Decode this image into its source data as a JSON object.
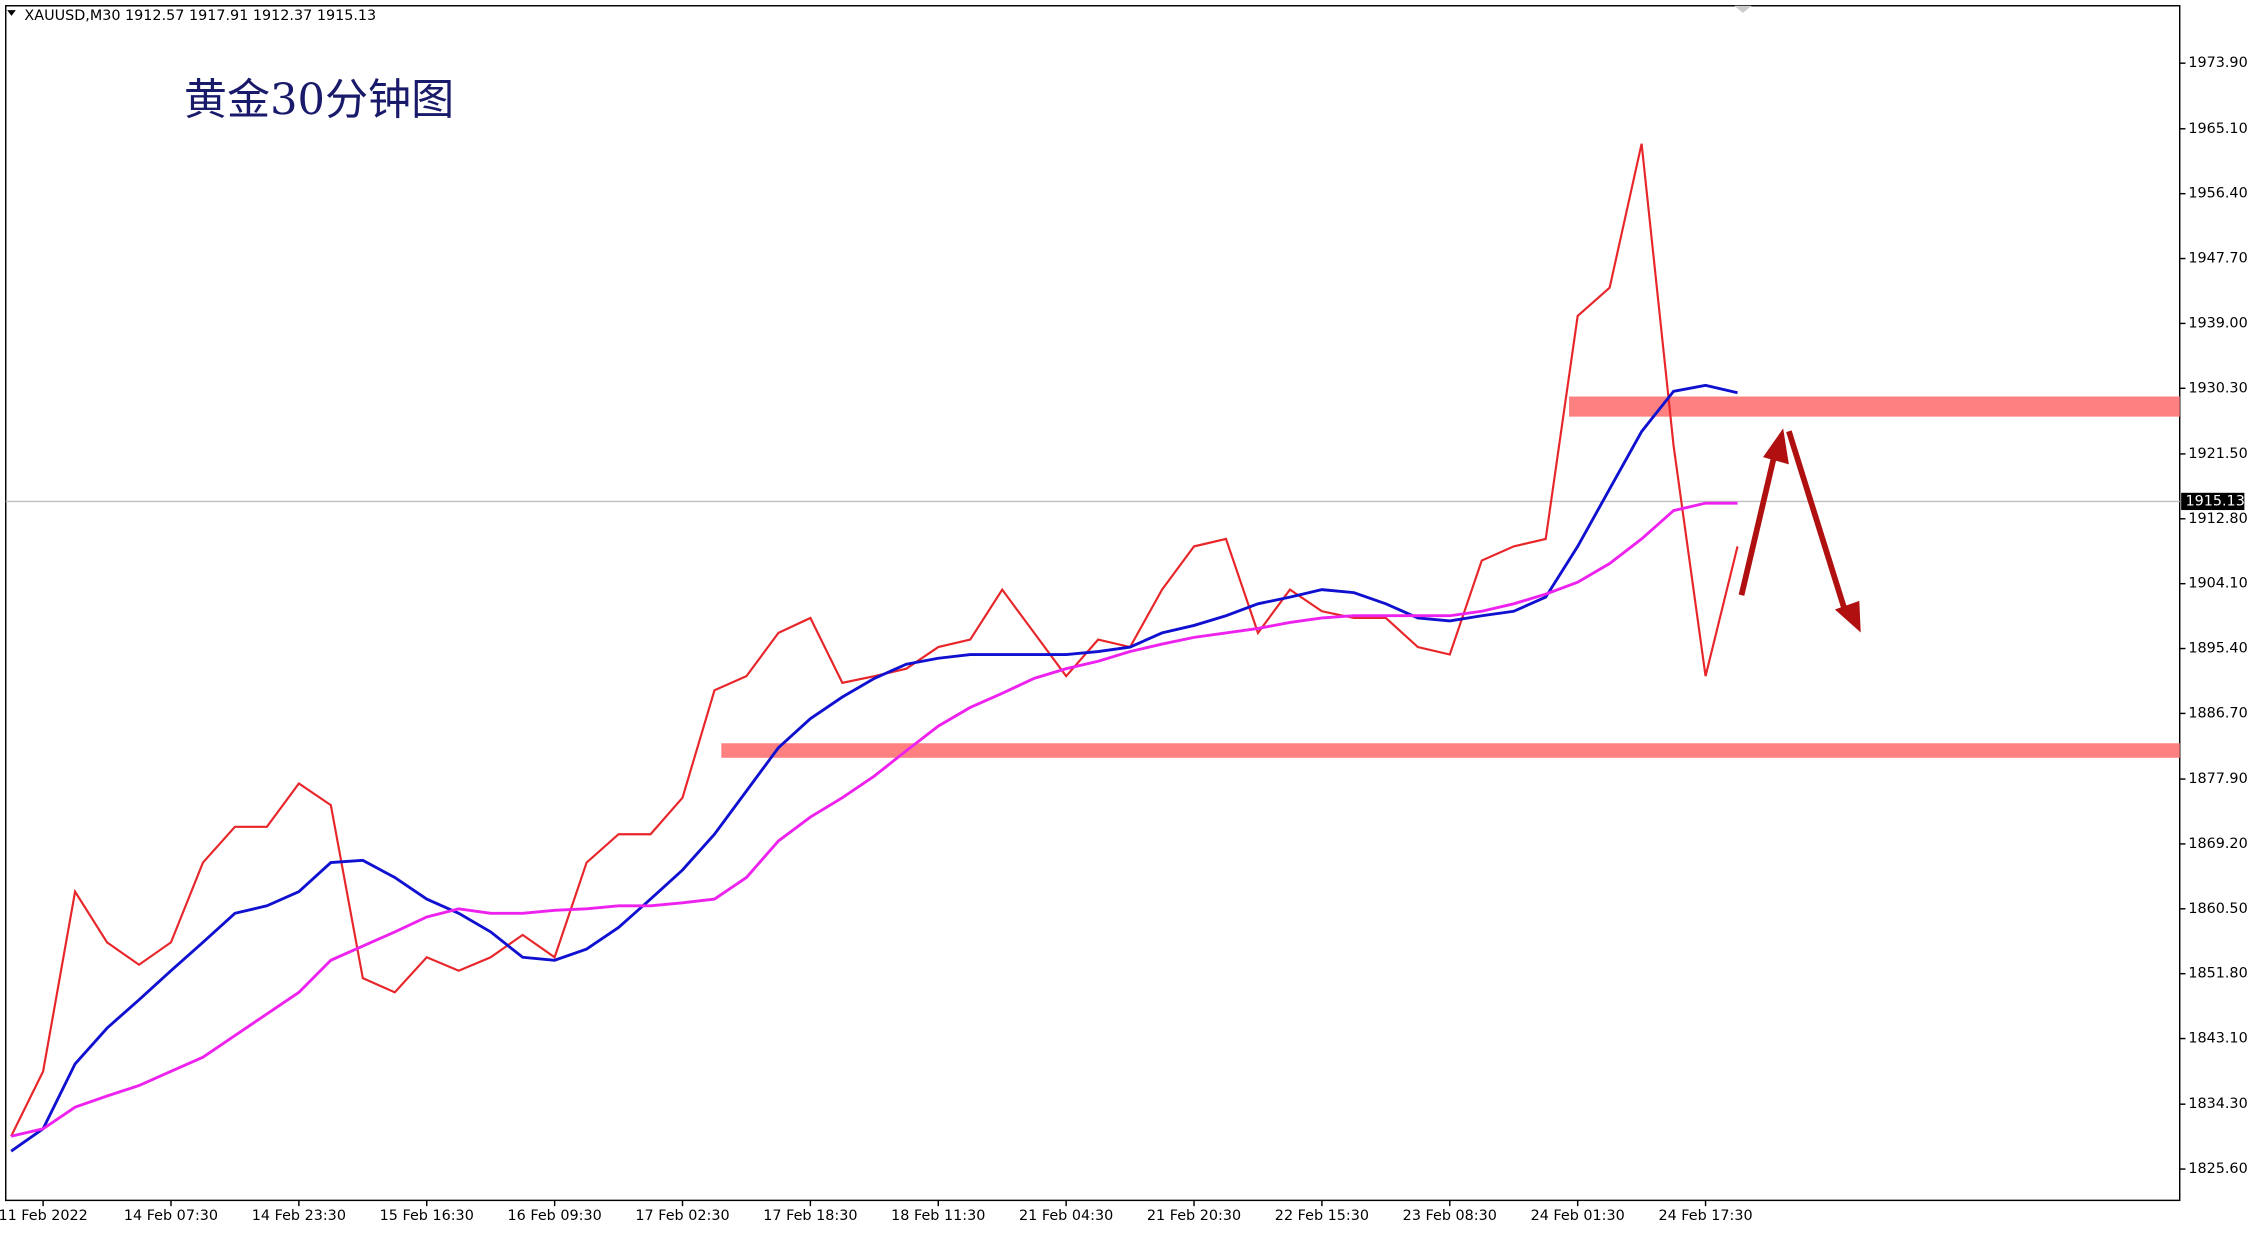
{
  "chart_data": {
    "type": "line",
    "header": "XAUUSD,M30  1912.57 1917.91 1912.37 1915.13",
    "title": "黄金30分钟图",
    "categories": [
      null,
      "11 Feb 2022",
      null,
      null,
      null,
      "14 Feb 07:30",
      null,
      null,
      null,
      "14 Feb 23:30",
      null,
      null,
      null,
      "15 Feb 16:30",
      null,
      null,
      null,
      "16 Feb 09:30",
      null,
      null,
      null,
      "17 Feb 02:30",
      null,
      null,
      null,
      "17 Feb 18:30",
      null,
      null,
      null,
      "18 Feb 11:30",
      null,
      null,
      null,
      "21 Feb 04:30",
      null,
      null,
      null,
      "21 Feb 20:30",
      null,
      null,
      null,
      "22 Feb 15:30",
      null,
      null,
      null,
      "23 Feb 08:30",
      null,
      null,
      null,
      "24 Feb 01:30",
      null,
      null,
      null,
      "24 Feb 17:30",
      null,
      null,
      null,
      null,
      null,
      null,
      null,
      null,
      null,
      null,
      null,
      null,
      null,
      null
    ],
    "series": [
      {
        "color": "#e8262a",
        "values": [
          1830,
          1838.7,
          1862.8,
          1856,
          1853,
          1856,
          1866.7,
          1871.5,
          1871.5,
          1877.3,
          1874.4,
          1851.2,
          1849.3,
          1854,
          1852.2,
          1854,
          1857,
          1854,
          1866.7,
          1870.5,
          1870.5,
          1875.4,
          1889.8,
          1891.7,
          1897.5,
          1899.5,
          1890.8,
          1891.7,
          1892.7,
          1895.6,
          1896.6,
          1903.3,
          1897.5,
          1891.7,
          1896.6,
          1895.6,
          1903.3,
          1909.1,
          1910.1,
          1897.5,
          1903.3,
          1900.4,
          1899.5,
          1899.5,
          1895.6,
          1894.6,
          1907.2,
          1909.1,
          1910.1,
          1940,
          1943.8,
          1963.1,
          1922.6,
          1891.7,
          1909.1,
          null,
          null,
          null,
          null,
          null,
          null,
          null,
          null,
          null,
          null,
          null,
          null,
          null
        ]
      },
      {
        "color": "#1010d0",
        "values": [
          1828,
          1831,
          1839.7,
          1844.5,
          1848.3,
          1852.2,
          1856,
          1859.9,
          1860.9,
          1862.8,
          1866.7,
          1867,
          1864.7,
          1861.8,
          1859.9,
          1857.4,
          1854,
          1853.6,
          1855.1,
          1858,
          1861.8,
          1865.7,
          1870.5,
          1876.3,
          1882.1,
          1886,
          1888.9,
          1891.4,
          1893.3,
          1894.1,
          1894.6,
          1894.6,
          1894.6,
          1894.6,
          1895,
          1895.6,
          1897.5,
          1898.5,
          1899.8,
          1901.4,
          1902.3,
          1903.3,
          1902.9,
          1901.4,
          1899.5,
          1899.1,
          1899.8,
          1900.4,
          1902.3,
          1909.1,
          1916.8,
          1924.5,
          1929.9,
          1930.7,
          1929.7,
          null,
          null,
          null,
          null,
          null,
          null,
          null,
          null,
          null,
          null,
          null,
          null,
          null
        ]
      },
      {
        "color": "#ee22ee",
        "values": [
          1830,
          1831,
          1833.9,
          1835.4,
          1836.8,
          1838.7,
          1840.6,
          1843.5,
          1846.4,
          1849.3,
          1853.6,
          1855.5,
          1857.4,
          1859.4,
          1860.5,
          1859.9,
          1859.9,
          1860.3,
          1860.5,
          1860.9,
          1860.9,
          1861.3,
          1861.8,
          1864.7,
          1869.6,
          1872.8,
          1875.4,
          1878.3,
          1881.7,
          1885,
          1887.5,
          1889.4,
          1891.4,
          1892.7,
          1893.7,
          1895,
          1896,
          1896.9,
          1897.5,
          1898.1,
          1898.9,
          1899.5,
          1899.8,
          1899.8,
          1899.8,
          1899.8,
          1900.4,
          1901.4,
          1902.7,
          1904.3,
          1906.8,
          1910.1,
          1913.9,
          1914.9,
          1914.9,
          null,
          null,
          null,
          null,
          null,
          null,
          null,
          null,
          null,
          null,
          null,
          null,
          null
        ]
      }
    ],
    "last_price": 1915.13,
    "zones": [
      [
        1926.5,
        1929.2
      ],
      [
        1880.75,
        1882.7
      ]
    ],
    "ylim": [
      1821.4,
      1981.6
    ],
    "yticks": [
      {
        "value": 1973.9,
        "label": "1973.90"
      },
      {
        "value": 1965.1,
        "label": "1965.10"
      },
      {
        "value": 1956.4,
        "label": "1956.40"
      },
      {
        "value": 1947.7,
        "label": "1947.70"
      },
      {
        "value": 1939,
        "label": "1939.00"
      },
      {
        "value": 1930.3,
        "label": "1930.30"
      },
      {
        "value": 1921.5,
        "label": "1921.50"
      },
      {
        "value": 1912.8,
        "label": "1912.80"
      },
      {
        "value": 1904.1,
        "label": "1904.10"
      },
      {
        "value": 1895.4,
        "label": "1895.40"
      },
      {
        "value": 1886.7,
        "label": "1886.70"
      },
      {
        "value": 1877.9,
        "label": "1877.90"
      },
      {
        "value": 1869.2,
        "label": "1869.20"
      },
      {
        "value": 1860.5,
        "label": "1860.50"
      },
      {
        "value": 1851.8,
        "label": "1851.80"
      },
      {
        "value": 1843.1,
        "label": "1843.10"
      },
      {
        "value": 1834.3,
        "label": "1834.30"
      },
      {
        "value": 1825.6,
        "label": "1825.60"
      }
    ]
  }
}
